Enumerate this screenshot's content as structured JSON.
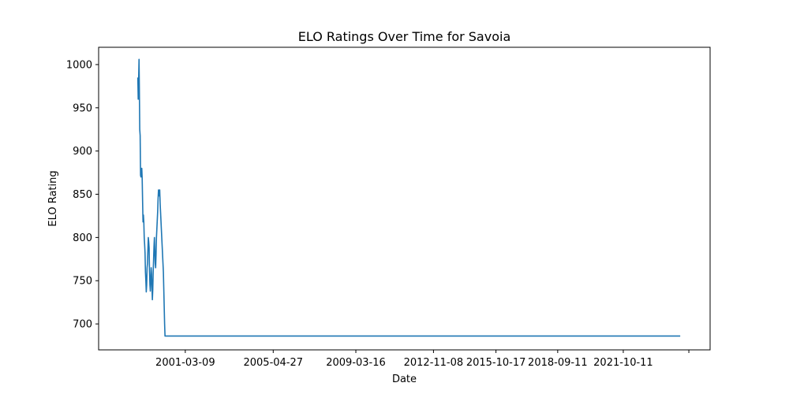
{
  "chart_data": {
    "type": "line",
    "title": "ELO Ratings Over Time for Savoia",
    "xlabel": "Date",
    "ylabel": "ELO Rating",
    "x_ticks": [
      "2001-03-09",
      "2005-04-27",
      "2009-03-16",
      "2012-11-08",
      "2015-10-17",
      "2018-09-11",
      "2021-10-11"
    ],
    "y_ticks": [
      700,
      750,
      800,
      850,
      900,
      950,
      1000
    ],
    "xlim": [
      "1997-02-10",
      "2025-11-10"
    ],
    "ylim": [
      670,
      1020
    ],
    "grid": false,
    "color": "#1f77b4",
    "series": [
      {
        "x": [
          "1998-12-15",
          "1998-12-22",
          "1999-01-05",
          "1999-01-10",
          "1999-01-17",
          "1999-01-24",
          "1999-01-31",
          "1999-02-07",
          "1999-02-14",
          "1999-02-21",
          "1999-02-28",
          "1999-03-07",
          "1999-03-14",
          "1999-03-21",
          "1999-03-28",
          "1999-04-04",
          "1999-04-11",
          "1999-04-18",
          "1999-04-25",
          "1999-05-02",
          "1999-05-09",
          "1999-05-16",
          "1999-05-23",
          "1999-05-30",
          "1999-06-06",
          "1999-06-13",
          "1999-06-20",
          "1999-06-27",
          "1999-07-04",
          "1999-07-11",
          "1999-07-18",
          "1999-07-25",
          "1999-08-01",
          "1999-08-08",
          "1999-08-15",
          "1999-08-22",
          "1999-08-29",
          "1999-09-05",
          "1999-09-12",
          "1999-09-19",
          "1999-09-26",
          "1999-10-03",
          "1999-10-10",
          "1999-10-17",
          "1999-10-24",
          "1999-10-31",
          "1999-11-07",
          "1999-11-14",
          "1999-11-21",
          "1999-11-28",
          "1999-12-05",
          "1999-12-12",
          "1999-12-19",
          "1999-12-26",
          "2000-01-02",
          "2000-01-09",
          "2000-01-16",
          "2000-01-23",
          "2000-01-30",
          "2000-02-06",
          "2000-02-13",
          "2000-02-20",
          "2000-02-27",
          "2000-03-05",
          "2000-03-12",
          "2000-03-19",
          "2000-03-26",
          "2000-04-02",
          "2000-04-09",
          "2024-06-15"
        ],
        "y": [
          985,
          960,
          1006,
          975,
          925,
          918,
          872,
          870,
          878,
          880,
          868,
          842,
          818,
          826,
          818,
          800,
          792,
          782,
          760,
          750,
          737,
          745,
          765,
          770,
          785,
          800,
          795,
          788,
          760,
          745,
          738,
          750,
          765,
          758,
          742,
          728,
          740,
          760,
          775,
          790,
          800,
          785,
          770,
          765,
          780,
          800,
          810,
          820,
          830,
          845,
          855,
          852,
          848,
          855,
          840,
          830,
          820,
          810,
          800,
          790,
          780,
          770,
          760,
          740,
          720,
          700,
          686,
          686,
          686,
          686
        ]
      }
    ]
  }
}
